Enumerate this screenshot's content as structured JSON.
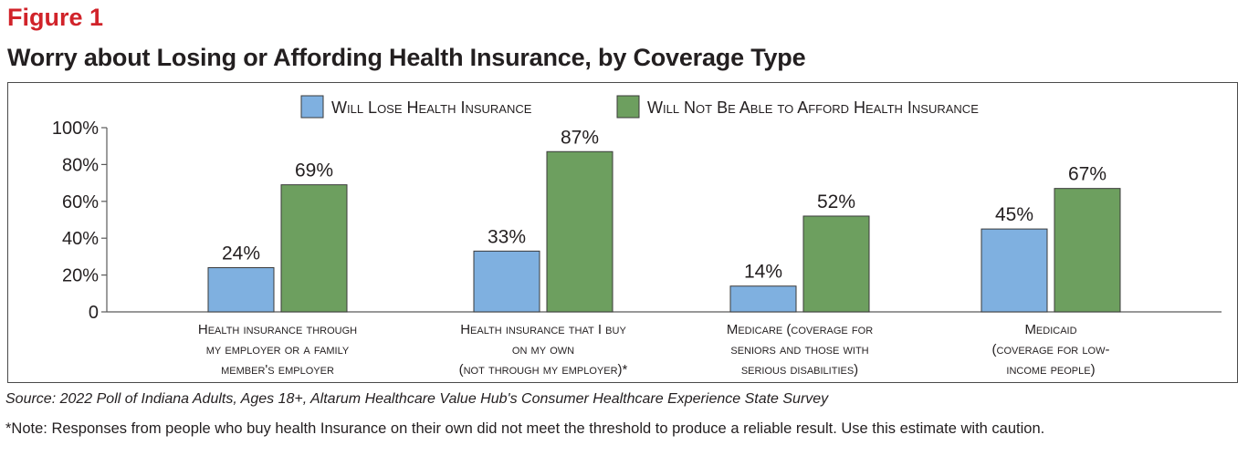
{
  "figure_label": "Figure 1",
  "title": "Worry about Losing or Affording Health Insurance, by Coverage Type",
  "source": "Source: 2022 Poll of Indiana Adults, Ages 18+, Altarum Healthcare Value Hub's Consumer Healthcare Experience State Survey",
  "note": "*Note: Responses from people who buy health Insurance on their own did not meet the threshold to produce a reliable result. Use this estimate with caution.",
  "colors": {
    "lose": "#7fb0e0",
    "afford": "#6d9f5f"
  },
  "chart_data": {
    "type": "bar",
    "categories": [
      [
        "Health insurance through",
        "my employer or a family",
        "member's employer"
      ],
      [
        "Health insurance that I buy",
        "on my own",
        "(not through my employer)*"
      ],
      [
        "Medicare (coverage for",
        "seniors and those with",
        "serious disabilities)"
      ],
      [
        "Medicaid",
        "(coverage for low-",
        "income people)"
      ]
    ],
    "series": [
      {
        "name": "Will Lose Health Insurance",
        "values": [
          24,
          33,
          14,
          45
        ],
        "labels": [
          "24%",
          "33%",
          "14%",
          "45%"
        ]
      },
      {
        "name": "Will Not Be Able to Afford Health Insurance",
        "values": [
          69,
          87,
          52,
          67
        ],
        "labels": [
          "69%",
          "87%",
          "52%",
          "67%"
        ]
      }
    ],
    "ylim": [
      0,
      100
    ],
    "yticks": [
      {
        "value": 0,
        "label": "0"
      },
      {
        "value": 20,
        "label": "20%"
      },
      {
        "value": 40,
        "label": "40%"
      },
      {
        "value": 60,
        "label": "60%"
      },
      {
        "value": 80,
        "label": "80%"
      },
      {
        "value": 100,
        "label": "100%"
      }
    ],
    "legend_position": "top",
    "grid": false
  }
}
